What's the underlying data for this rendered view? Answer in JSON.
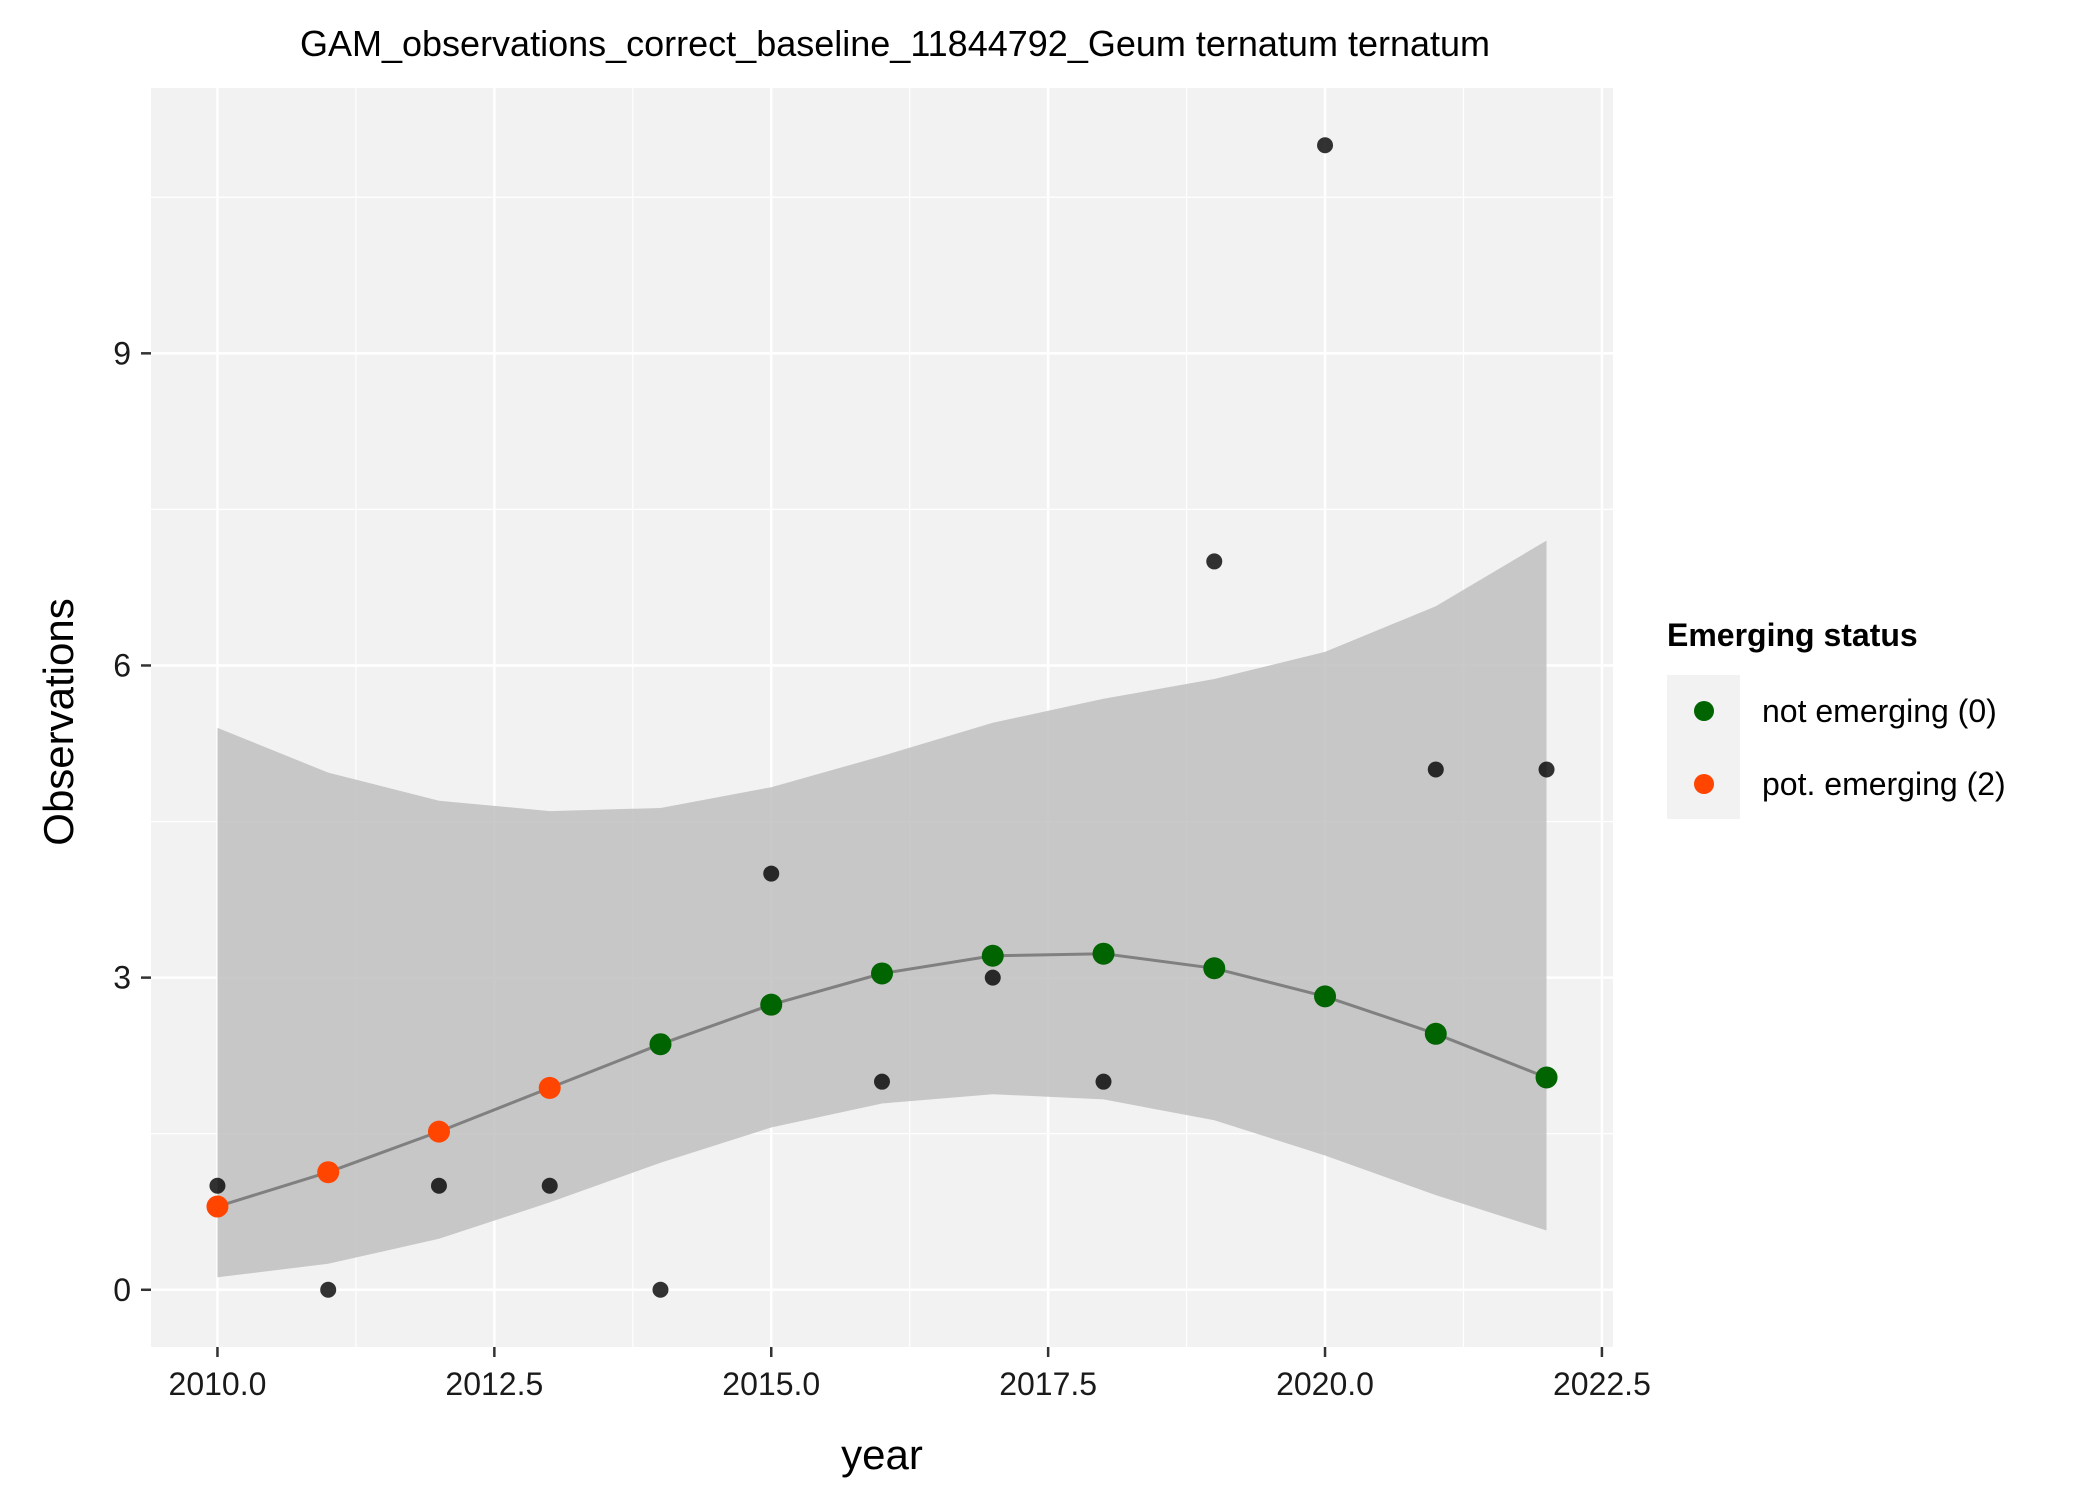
{
  "colors": {
    "panel_bg": "#f2f2f2",
    "grid": "#ffffff",
    "ribbon": "#bfbfbf",
    "line": "#808080",
    "observed": "#000000",
    "not_emerging": "#006400",
    "pot_emerging": "#ff4500"
  },
  "chart_data": {
    "type": "scatter",
    "title": "GAM_observations_correct_baseline_11844792_Geum ternatum ternatum",
    "xlabel": "year",
    "ylabel": "Observations",
    "xlim": [
      2009.4,
      2022.6
    ],
    "ylim": [
      -0.55,
      11.55
    ],
    "x_ticks": [
      2010.0,
      2012.5,
      2015.0,
      2017.5,
      2020.0,
      2022.5
    ],
    "x_tick_labels": [
      "2010.0",
      "2012.5",
      "2015.0",
      "2017.5",
      "2020.0",
      "2022.5"
    ],
    "y_ticks": [
      0,
      3,
      6,
      9
    ],
    "y_tick_labels": [
      "0",
      "3",
      "6",
      "9"
    ],
    "grid": true,
    "legend_position": "right",
    "observed": {
      "x": [
        2010,
        2011,
        2012,
        2013,
        2014,
        2015,
        2016,
        2017,
        2018,
        2019,
        2020,
        2021,
        2022
      ],
      "y": [
        1,
        0,
        1,
        1,
        0,
        4,
        2,
        3,
        2,
        7,
        11,
        5,
        5
      ]
    },
    "fit": {
      "x": [
        2010,
        2011,
        2012,
        2013,
        2014,
        2015,
        2016,
        2017,
        2018,
        2019,
        2020,
        2021,
        2022
      ],
      "y": [
        0.8,
        1.13,
        1.52,
        1.94,
        2.36,
        2.74,
        3.04,
        3.21,
        3.23,
        3.09,
        2.82,
        2.46,
        2.04
      ],
      "lower": [
        0.12,
        0.25,
        0.49,
        0.84,
        1.22,
        1.56,
        1.79,
        1.88,
        1.83,
        1.63,
        1.29,
        0.91,
        0.57
      ],
      "upper": [
        5.4,
        4.97,
        4.7,
        4.6,
        4.63,
        4.83,
        5.13,
        5.45,
        5.68,
        5.87,
        6.13,
        6.57,
        7.2
      ],
      "status": [
        2,
        2,
        2,
        2,
        0,
        0,
        0,
        0,
        0,
        0,
        0,
        0,
        0
      ]
    },
    "legend": {
      "title": "Emerging status",
      "entries": [
        {
          "label": "not emerging (0)",
          "color": "#006400"
        },
        {
          "label": "pot. emerging (2)",
          "color": "#ff4500"
        }
      ]
    }
  }
}
